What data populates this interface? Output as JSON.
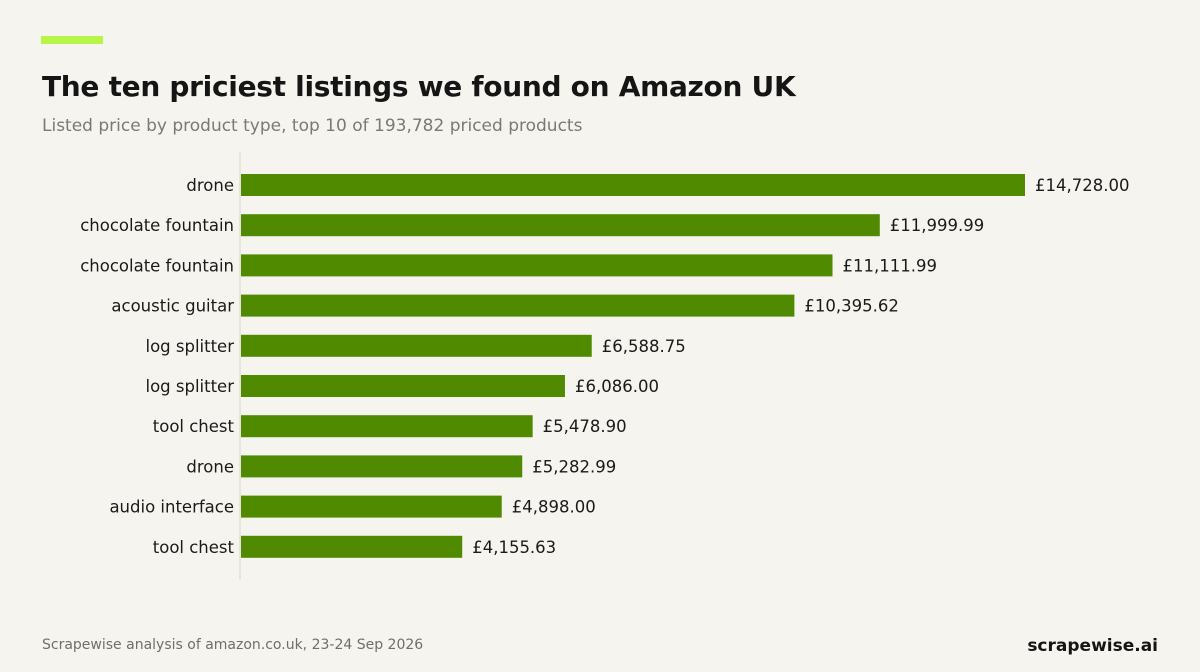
{
  "header": {
    "title": "The ten priciest listings we found on Amazon UK",
    "subtitle": "Listed price by product type, top 10 of 193,782 priced products"
  },
  "footer": {
    "source": "Scrapewise analysis of amazon.co.uk, 23-24 Sep 2026",
    "brand": "scrapewise.ai"
  },
  "colors": {
    "accent": "#b8f54a",
    "bar": "#4f8a00",
    "background": "#f5f4ee"
  },
  "chart_data": {
    "type": "bar",
    "orientation": "horizontal",
    "categories": [
      "drone",
      "chocolate fountain",
      "chocolate fountain",
      "acoustic guitar",
      "log splitter",
      "log splitter",
      "tool chest",
      "drone",
      "audio interface",
      "tool chest"
    ],
    "values": [
      14728.0,
      11999.99,
      11111.99,
      10395.62,
      6588.75,
      6086.0,
      5478.9,
      5282.99,
      4898.0,
      4155.63
    ],
    "value_labels": [
      "£14,728.00",
      "£11,999.99",
      "£11,111.99",
      "£10,395.62",
      "£6,588.75",
      "£6,086.00",
      "£5,478.90",
      "£5,282.99",
      "£4,898.00",
      "£4,155.63"
    ],
    "xlim": [
      0,
      14728.0
    ],
    "grid": false,
    "legend": "none"
  }
}
